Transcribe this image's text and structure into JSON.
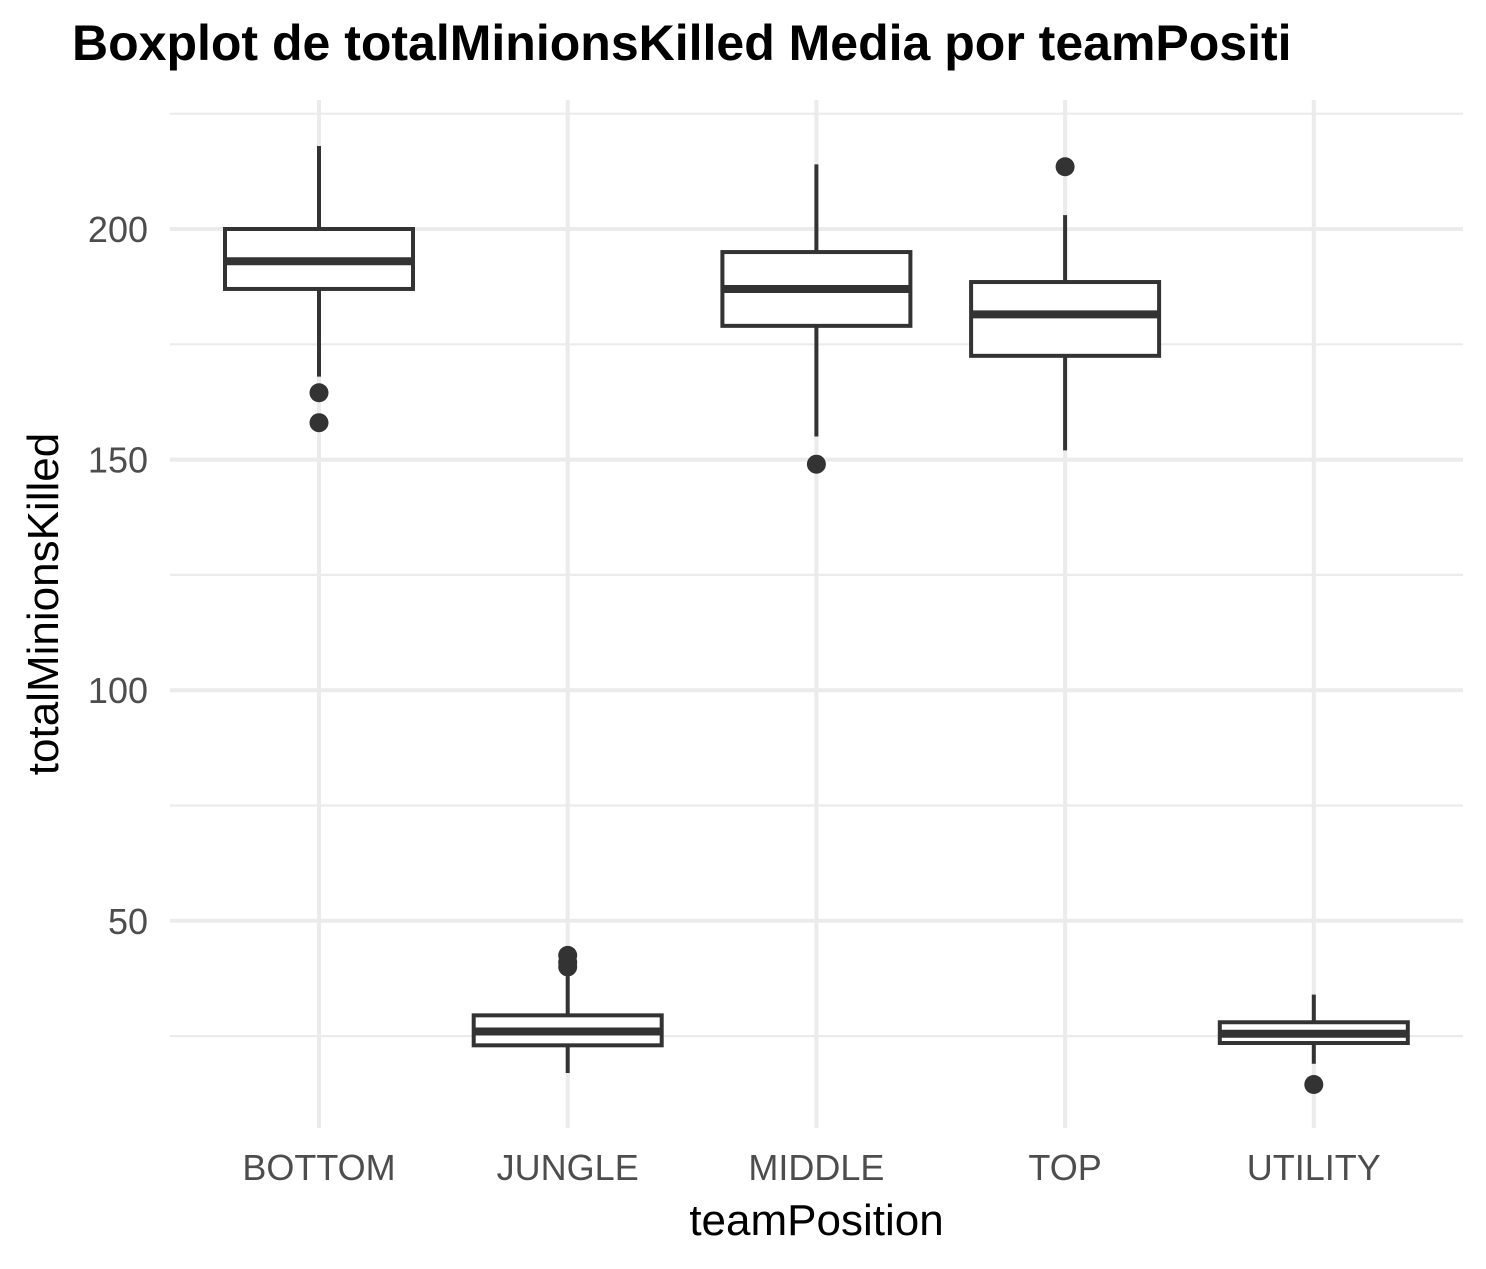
{
  "chart_data": {
    "type": "boxplot",
    "title": "Boxplot de totalMinionsKilled Media por teamPositi",
    "xlabel": "teamPosition",
    "ylabel": "totalMinionsKilled",
    "categories": [
      "BOTTOM",
      "JUNGLE",
      "MIDDLE",
      "TOP",
      "UTILITY"
    ],
    "ylim": [
      12,
      225
    ],
    "yticks": [
      50,
      100,
      150,
      200
    ],
    "grid": true,
    "boxes": [
      {
        "category": "BOTTOM",
        "whisker_low": 168,
        "q1": 187,
        "median": 193,
        "q3": 200,
        "whisker_high": 218,
        "outliers": [
          164.5,
          158
        ]
      },
      {
        "category": "JUNGLE",
        "whisker_low": 17,
        "q1": 23,
        "median": 26,
        "q3": 29.5,
        "whisker_high": 38,
        "outliers": [
          40,
          41,
          42.5
        ]
      },
      {
        "category": "MIDDLE",
        "whisker_low": 155,
        "q1": 179,
        "median": 187,
        "q3": 195,
        "whisker_high": 214,
        "outliers": [
          149
        ]
      },
      {
        "category": "TOP",
        "whisker_low": 152,
        "q1": 172.5,
        "median": 181.5,
        "q3": 188.5,
        "whisker_high": 203,
        "outliers": [
          213.5
        ]
      },
      {
        "category": "UTILITY",
        "whisker_low": 19,
        "q1": 23.5,
        "median": 25.5,
        "q3": 28,
        "whisker_high": 34,
        "outliers": [
          14.5
        ]
      }
    ]
  }
}
